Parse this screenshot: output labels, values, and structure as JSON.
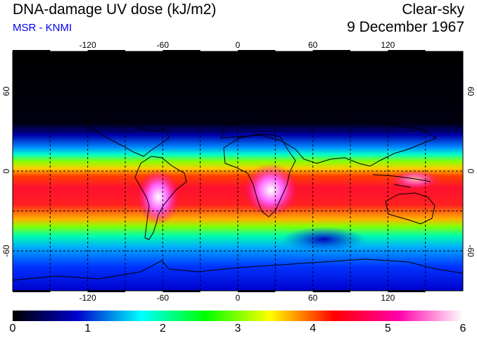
{
  "header": {
    "title": "DNA-damage UV dose (kJ/m2)",
    "subtitle": "MSR - KNMI",
    "sky": "Clear-sky",
    "date": "9 December 1967"
  },
  "axes": {
    "lon_ticks": [
      "-120",
      "-60",
      "0",
      "60",
      "120"
    ],
    "lat_ticks_left": [
      "60",
      "0",
      "-60"
    ],
    "lat_ticks_right": [
      "60",
      "0",
      "-60"
    ]
  },
  "colorbar": {
    "ticks": [
      "0",
      "1",
      "2",
      "3",
      "4",
      "5",
      "6"
    ],
    "stops": [
      "#000000",
      "#0000cc",
      "#00ffff",
      "#00ff00",
      "#ffff00",
      "#ff0000",
      "#ff00aa",
      "#ffffff"
    ]
  },
  "colors": {
    "polar_night": "#000000",
    "tropics": "#ff2020",
    "peak": "#ff66ff",
    "graticule": "#000000"
  }
}
